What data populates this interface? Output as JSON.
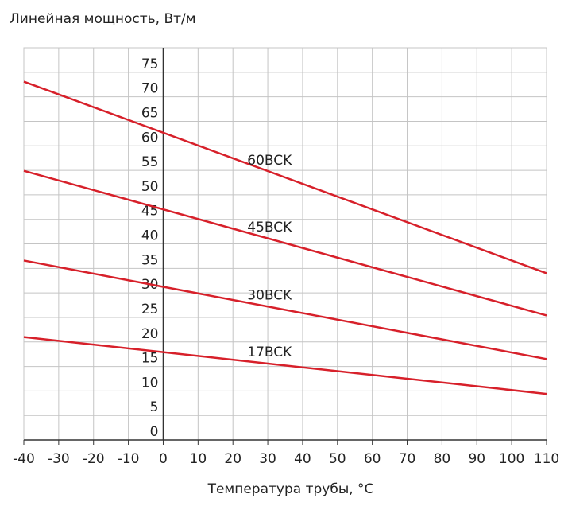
{
  "chart_data": {
    "type": "line",
    "y_label": "Линейная мощность, Вт/м",
    "x_label": "Температура трубы, °С",
    "x": [
      -40,
      110
    ],
    "series": [
      {
        "name": "60BCK",
        "color": "#d7202a",
        "values": [
          73.1,
          34
        ]
      },
      {
        "name": "45BCK",
        "color": "#d7202a",
        "values": [
          54.9,
          25.4
        ]
      },
      {
        "name": "30BCK",
        "color": "#d7202a",
        "values": [
          36.6,
          16.5
        ]
      },
      {
        "name": "17BCK",
        "color": "#d7202a",
        "values": [
          21,
          9.4
        ]
      }
    ],
    "xlim": [
      -40,
      110
    ],
    "xticks": [
      -40,
      -30,
      -20,
      -10,
      0,
      10,
      20,
      30,
      40,
      50,
      60,
      70,
      80,
      90,
      100,
      110
    ],
    "ylim": [
      0,
      80
    ],
    "yticks": [
      0,
      5,
      10,
      15,
      20,
      25,
      30,
      35,
      40,
      45,
      50,
      55,
      60,
      65,
      70,
      75
    ],
    "grid": true
  }
}
